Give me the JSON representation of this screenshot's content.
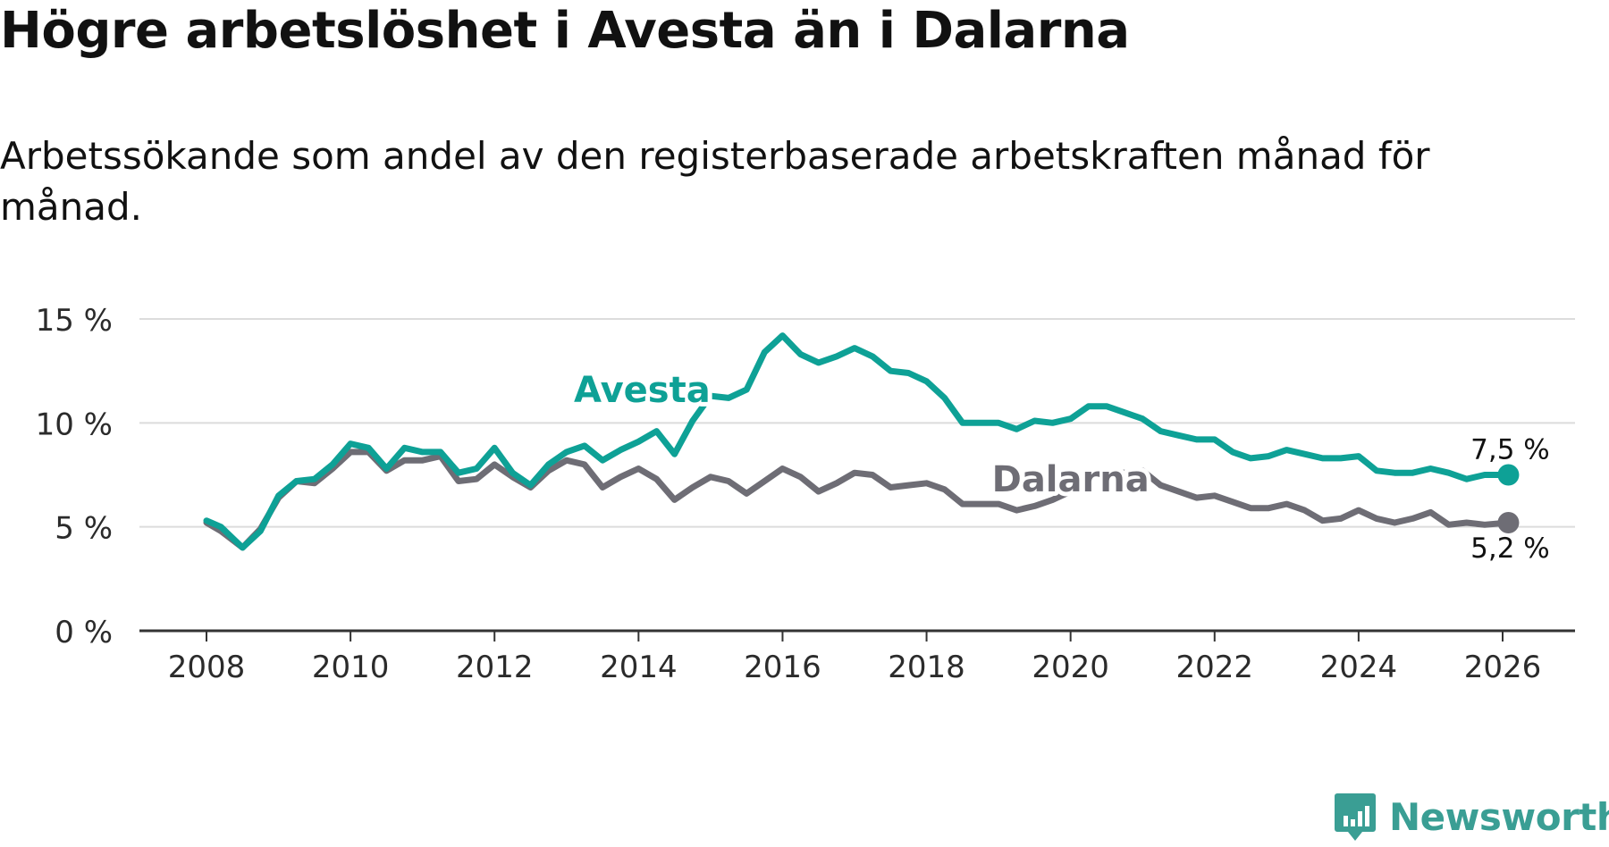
{
  "header": {
    "title": "Högre arbetslöshet i Avesta än i Dalarna",
    "subtitle": "Arbetssökande som andel av den registerbaserade arbetskraften månad för månad."
  },
  "brand": {
    "name": "Newsworthy",
    "icon": "newsworthy-logo-icon",
    "color": "#3a9e94"
  },
  "chart_data": {
    "type": "line",
    "title": "Högre arbetslöshet i Avesta än i Dalarna",
    "subtitle": "Arbetssökande som andel av den registerbaserade arbetskraften månad för månad.",
    "xlabel": "",
    "ylabel": "",
    "xlim": [
      2007.1,
      2026.2
    ],
    "ylim": [
      0,
      15
    ],
    "x_ticks": [
      2008,
      2010,
      2012,
      2014,
      2016,
      2018,
      2020,
      2022,
      2024,
      2026
    ],
    "x_tick_labels": [
      "2008",
      "2010",
      "2012",
      "2014",
      "2016",
      "2018",
      "2020",
      "2022",
      "2024",
      "2026"
    ],
    "y_ticks": [
      0,
      5,
      10,
      15
    ],
    "y_tick_labels": [
      "0 %",
      "5 %",
      "10 %",
      "15 %"
    ],
    "grid": true,
    "legend": "inline labels",
    "series": [
      {
        "name": "Avesta",
        "color": "#0ea196",
        "end_label": "7,5 %",
        "points": [
          [
            2008.0,
            5.3
          ],
          [
            2008.2,
            5.0
          ],
          [
            2008.5,
            4.0
          ],
          [
            2008.75,
            4.8
          ],
          [
            2009.0,
            6.5
          ],
          [
            2009.25,
            7.2
          ],
          [
            2009.5,
            7.3
          ],
          [
            2009.75,
            8.0
          ],
          [
            2010.0,
            9.0
          ],
          [
            2010.25,
            8.8
          ],
          [
            2010.5,
            7.8
          ],
          [
            2010.75,
            8.8
          ],
          [
            2011.0,
            8.6
          ],
          [
            2011.25,
            8.6
          ],
          [
            2011.5,
            7.6
          ],
          [
            2011.75,
            7.8
          ],
          [
            2012.0,
            8.8
          ],
          [
            2012.25,
            7.6
          ],
          [
            2012.5,
            7.0
          ],
          [
            2012.75,
            8.0
          ],
          [
            2013.0,
            8.6
          ],
          [
            2013.25,
            8.9
          ],
          [
            2013.5,
            8.2
          ],
          [
            2013.75,
            8.7
          ],
          [
            2014.0,
            9.1
          ],
          [
            2014.25,
            9.6
          ],
          [
            2014.5,
            8.5
          ],
          [
            2014.75,
            10.1
          ],
          [
            2015.0,
            11.3
          ],
          [
            2015.25,
            11.2
          ],
          [
            2015.5,
            11.6
          ],
          [
            2015.75,
            13.4
          ],
          [
            2016.0,
            14.2
          ],
          [
            2016.25,
            13.3
          ],
          [
            2016.5,
            12.9
          ],
          [
            2016.75,
            13.2
          ],
          [
            2017.0,
            13.6
          ],
          [
            2017.25,
            13.2
          ],
          [
            2017.5,
            12.5
          ],
          [
            2017.75,
            12.4
          ],
          [
            2018.0,
            12.0
          ],
          [
            2018.25,
            11.2
          ],
          [
            2018.5,
            10.0
          ],
          [
            2018.75,
            10.0
          ],
          [
            2019.0,
            10.0
          ],
          [
            2019.25,
            9.7
          ],
          [
            2019.5,
            10.1
          ],
          [
            2019.75,
            10.0
          ],
          [
            2020.0,
            10.2
          ],
          [
            2020.25,
            10.8
          ],
          [
            2020.5,
            10.8
          ],
          [
            2020.75,
            10.5
          ],
          [
            2021.0,
            10.2
          ],
          [
            2021.25,
            9.6
          ],
          [
            2021.5,
            9.4
          ],
          [
            2021.75,
            9.2
          ],
          [
            2022.0,
            9.2
          ],
          [
            2022.25,
            8.6
          ],
          [
            2022.5,
            8.3
          ],
          [
            2022.75,
            8.4
          ],
          [
            2023.0,
            8.7
          ],
          [
            2023.25,
            8.5
          ],
          [
            2023.5,
            8.3
          ],
          [
            2023.75,
            8.3
          ],
          [
            2024.0,
            8.4
          ],
          [
            2024.25,
            7.7
          ],
          [
            2024.5,
            7.6
          ],
          [
            2024.75,
            7.6
          ],
          [
            2025.0,
            7.8
          ],
          [
            2025.25,
            7.6
          ],
          [
            2025.5,
            7.3
          ],
          [
            2025.75,
            7.5
          ],
          [
            2026.08,
            7.5
          ]
        ]
      },
      {
        "name": "Dalarna",
        "color": "#6e6d75",
        "end_label": "5,2 %",
        "points": [
          [
            2008.0,
            5.2
          ],
          [
            2008.2,
            4.8
          ],
          [
            2008.5,
            4.0
          ],
          [
            2008.75,
            4.9
          ],
          [
            2009.0,
            6.4
          ],
          [
            2009.25,
            7.2
          ],
          [
            2009.5,
            7.1
          ],
          [
            2009.75,
            7.8
          ],
          [
            2010.0,
            8.6
          ],
          [
            2010.25,
            8.6
          ],
          [
            2010.5,
            7.7
          ],
          [
            2010.75,
            8.2
          ],
          [
            2011.0,
            8.2
          ],
          [
            2011.25,
            8.4
          ],
          [
            2011.5,
            7.2
          ],
          [
            2011.75,
            7.3
          ],
          [
            2012.0,
            8.0
          ],
          [
            2012.25,
            7.4
          ],
          [
            2012.5,
            6.9
          ],
          [
            2012.75,
            7.7
          ],
          [
            2013.0,
            8.2
          ],
          [
            2013.25,
            8.0
          ],
          [
            2013.5,
            6.9
          ],
          [
            2013.75,
            7.4
          ],
          [
            2014.0,
            7.8
          ],
          [
            2014.25,
            7.3
          ],
          [
            2014.5,
            6.3
          ],
          [
            2014.75,
            6.9
          ],
          [
            2015.0,
            7.4
          ],
          [
            2015.25,
            7.2
          ],
          [
            2015.5,
            6.6
          ],
          [
            2015.75,
            7.2
          ],
          [
            2016.0,
            7.8
          ],
          [
            2016.25,
            7.4
          ],
          [
            2016.5,
            6.7
          ],
          [
            2016.75,
            7.1
          ],
          [
            2017.0,
            7.6
          ],
          [
            2017.25,
            7.5
          ],
          [
            2017.5,
            6.9
          ],
          [
            2017.75,
            7.0
          ],
          [
            2018.0,
            7.1
          ],
          [
            2018.25,
            6.8
          ],
          [
            2018.5,
            6.1
          ],
          [
            2018.75,
            6.1
          ],
          [
            2019.0,
            6.1
          ],
          [
            2019.25,
            5.8
          ],
          [
            2019.5,
            6.0
          ],
          [
            2019.75,
            6.3
          ],
          [
            2020.0,
            6.7
          ],
          [
            2020.25,
            7.4
          ],
          [
            2020.5,
            7.7
          ],
          [
            2020.75,
            7.6
          ],
          [
            2021.0,
            7.7
          ],
          [
            2021.25,
            7.0
          ],
          [
            2021.5,
            6.7
          ],
          [
            2021.75,
            6.4
          ],
          [
            2022.0,
            6.5
          ],
          [
            2022.25,
            6.2
          ],
          [
            2022.5,
            5.9
          ],
          [
            2022.75,
            5.9
          ],
          [
            2023.0,
            6.1
          ],
          [
            2023.25,
            5.8
          ],
          [
            2023.5,
            5.3
          ],
          [
            2023.75,
            5.4
          ],
          [
            2024.0,
            5.8
          ],
          [
            2024.25,
            5.4
          ],
          [
            2024.5,
            5.2
          ],
          [
            2024.75,
            5.4
          ],
          [
            2025.0,
            5.7
          ],
          [
            2025.25,
            5.1
          ],
          [
            2025.5,
            5.2
          ],
          [
            2025.75,
            5.1
          ],
          [
            2026.08,
            5.2
          ]
        ]
      }
    ]
  }
}
